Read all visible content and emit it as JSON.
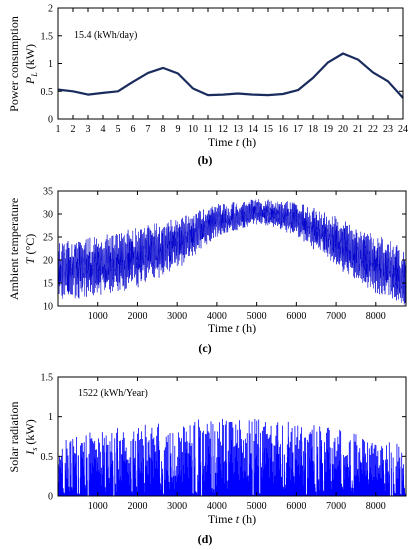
{
  "chart_data": [
    {
      "type": "line",
      "panel_label": "(b)",
      "annotation": "15.4 (kWh/day)",
      "ylabel_text": "Power consumption",
      "ylabel_symbol": "P",
      "ylabel_subscript": "L",
      "ylabel_unit": " (kW)",
      "xlabel_text": "Time",
      "xlabel_symbol": "t",
      "xlabel_unit": " (h)",
      "xlim": [
        1,
        24
      ],
      "ylim": [
        0,
        2
      ],
      "x_ticks": [
        "1",
        "2",
        "3",
        "4",
        "5",
        "6",
        "7",
        "8",
        "9",
        "10",
        "11",
        "12",
        "13",
        "14",
        "15",
        "16",
        "17",
        "18",
        "19",
        "20",
        "21",
        "22",
        "23",
        "24"
      ],
      "y_ticks": [
        "0",
        "0.5",
        "1",
        "1.5",
        "2"
      ],
      "color": "#1a2b5e",
      "series": [
        {
          "x": [
            1,
            2,
            3,
            4,
            5,
            6,
            7,
            8,
            9,
            10,
            11,
            12,
            13,
            14,
            15,
            16,
            17,
            18,
            19,
            20,
            21,
            22,
            23,
            24
          ],
          "y": [
            0.53,
            0.5,
            0.44,
            0.47,
            0.5,
            0.67,
            0.83,
            0.92,
            0.82,
            0.55,
            0.43,
            0.44,
            0.46,
            0.44,
            0.43,
            0.45,
            0.52,
            0.74,
            1.02,
            1.18,
            1.07,
            0.84,
            0.68,
            0.38
          ]
        }
      ]
    },
    {
      "type": "line",
      "panel_label": "(c)",
      "ylabel_text": "Ambient temperature",
      "ylabel_symbol": "T",
      "ylabel_unit": " (°C)",
      "xlabel_text": "Time",
      "xlabel_symbol": "t",
      "xlabel_unit": " (h)",
      "xlim": [
        0,
        8760
      ],
      "ylim": [
        10,
        35
      ],
      "x_ticks": [
        "1000",
        "2000",
        "3000",
        "4000",
        "5000",
        "6000",
        "7000",
        "8000"
      ],
      "y_ticks": [
        "10",
        "15",
        "20",
        "25",
        "30",
        "35"
      ],
      "color": "#0000cc",
      "seasonal_profile": {
        "hours": [
          0,
          1000,
          2000,
          3000,
          4000,
          5000,
          6000,
          7000,
          8000,
          8760
        ],
        "mean": [
          17.5,
          18.5,
          20.5,
          23.5,
          28.5,
          30.5,
          29.0,
          24.0,
          19.0,
          16.0
        ],
        "daily_amplitude": [
          7,
          7,
          7,
          6,
          4,
          3,
          4,
          6,
          7,
          7
        ]
      }
    },
    {
      "type": "area",
      "panel_label": "(d)",
      "annotation": "1522 (kWh/Year)",
      "ylabel_text": "Solar radiation",
      "ylabel_symbol": "I",
      "ylabel_subscript": "s",
      "ylabel_unit": " (kW)",
      "xlabel_text": "Time",
      "xlabel_symbol": "t",
      "xlabel_unit": " (h)",
      "xlim": [
        0,
        8760
      ],
      "ylim": [
        0,
        1.5
      ],
      "x_ticks": [
        "1000",
        "2000",
        "3000",
        "4000",
        "5000",
        "6000",
        "7000",
        "8000"
      ],
      "y_ticks": [
        "0",
        "0.5",
        "1",
        "1.5"
      ],
      "color": "#0000ff",
      "seasonal_profile": {
        "hours": [
          0,
          1000,
          2000,
          3000,
          4000,
          5000,
          6000,
          7000,
          8000,
          8760
        ],
        "daily_peak_max": [
          0.72,
          0.82,
          0.9,
          0.95,
          0.98,
          0.97,
          0.93,
          0.86,
          0.72,
          0.65
        ]
      }
    }
  ]
}
